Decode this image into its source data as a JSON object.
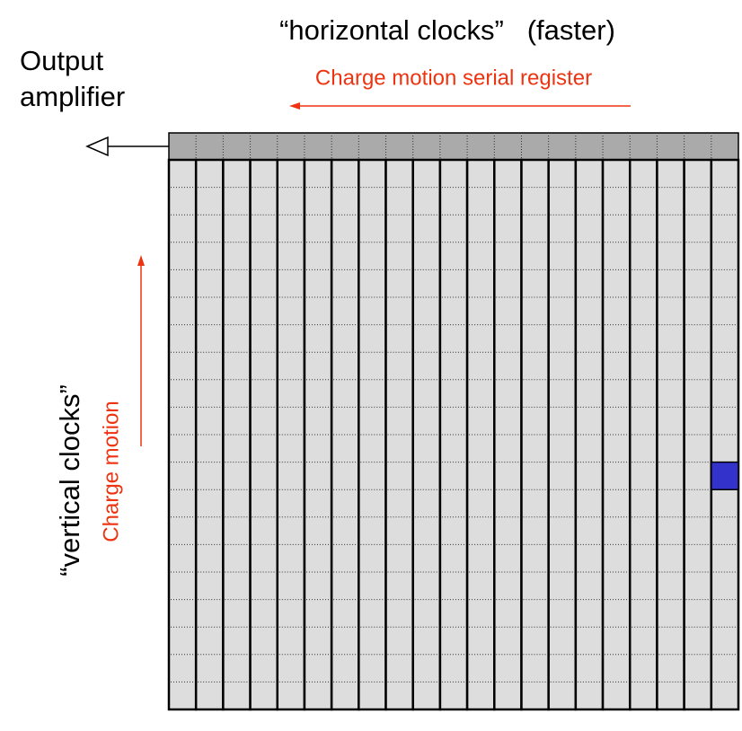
{
  "header": {
    "title": "“horizontal clocks”   (faster)"
  },
  "labels": {
    "output_line1": "Output",
    "output_line2": "amplifier",
    "serial_motion": "Charge motion serial register",
    "vertical_clocks": "“vertical clocks”",
    "vertical_motion": "Charge motion"
  }
}
